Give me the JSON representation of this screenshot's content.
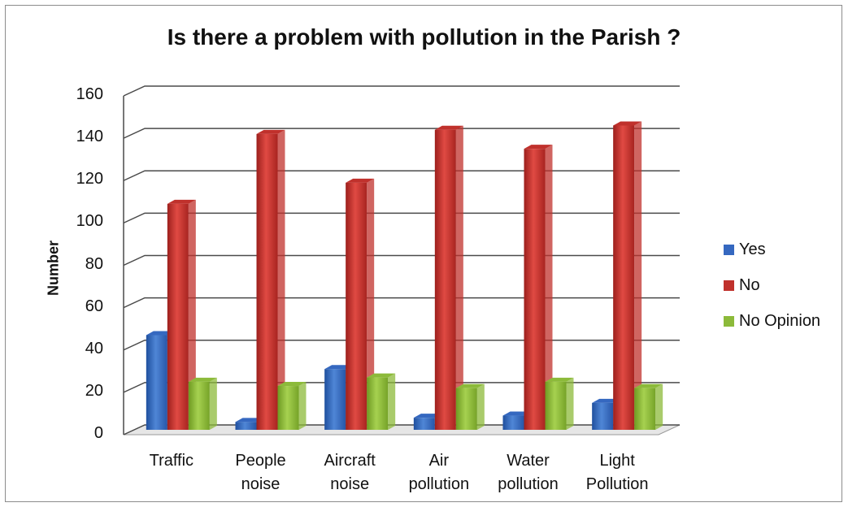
{
  "chart_data": {
    "type": "bar",
    "title": "Is there a problem with pollution in the Parish ?",
    "xlabel": "",
    "ylabel": "Number",
    "ylim": [
      0,
      160
    ],
    "yticks": [
      0,
      20,
      40,
      60,
      80,
      100,
      120,
      140,
      160
    ],
    "categories": [
      [
        "Traffic"
      ],
      [
        "People",
        "noise"
      ],
      [
        "Aircraft",
        "noise"
      ],
      [
        "Air",
        "pollution"
      ],
      [
        "Water",
        "pollution"
      ],
      [
        "Light",
        "Pollution"
      ]
    ],
    "series": [
      {
        "name": "Yes",
        "color": "#3568c0",
        "values": [
          47,
          6,
          31,
          8,
          9,
          15
        ]
      },
      {
        "name": "No",
        "color": "#c0312c",
        "values": [
          109,
          142,
          119,
          144,
          135,
          146
        ]
      },
      {
        "name": "No Opinion",
        "color": "#8cba3a",
        "values": [
          25,
          23,
          27,
          22,
          25,
          22
        ]
      }
    ],
    "grid": true,
    "legend_position": "right",
    "style": "3d-bars"
  }
}
